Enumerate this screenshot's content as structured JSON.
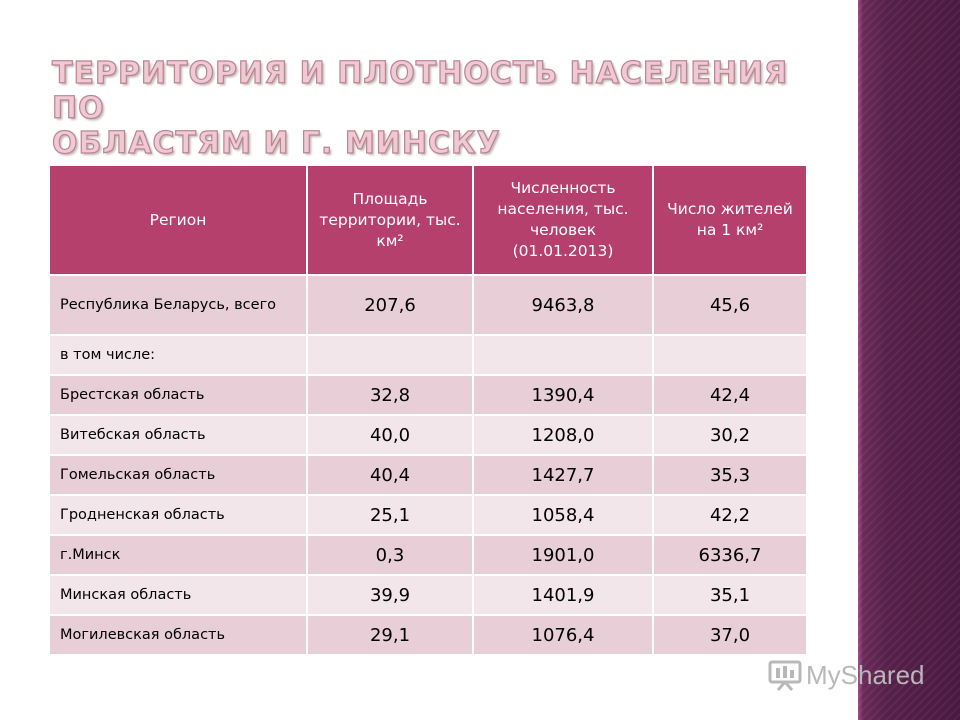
{
  "slide": {
    "title_line1": "ТЕРРИТОРИЯ И ПЛОТНОСТЬ НАСЕЛЕНИЯ ПО",
    "title_line2": "ОБЛАСТЯМ И Г. МИНСКУ"
  },
  "table": {
    "headers": [
      "Регион",
      "Площадь территории, тыс. км²",
      "Численность населения, тыс. человек (01.01.2013)",
      "Число жителей на 1 км²"
    ],
    "rows": [
      {
        "region": "Республика Беларусь, всего",
        "area": "207,6",
        "population": "9463,8",
        "density": "45,6"
      },
      {
        "region": "в том числе:",
        "area": "",
        "population": "",
        "density": ""
      },
      {
        "region": "Брестская область",
        "area": "32,8",
        "population": "1390,4",
        "density": "42,4"
      },
      {
        "region": "Витебская область",
        "area": "40,0",
        "population": "1208,0",
        "density": "30,2"
      },
      {
        "region": "Гомельская область",
        "area": "40,4",
        "population": "1427,7",
        "density": "35,3"
      },
      {
        "region": "Гродненская область",
        "area": "25,1",
        "population": "1058,4",
        "density": "42,2"
      },
      {
        "region": "г.Минск",
        "area": "0,3",
        "population": "1901,0",
        "density": "6336,7"
      },
      {
        "region": "Минская область",
        "area": "39,9",
        "population": "1401,9",
        "density": "35,1"
      },
      {
        "region": "Могилевская область",
        "area": "29,1",
        "population": "1076,4",
        "density": "37,0"
      }
    ]
  },
  "watermark": {
    "text": "MyShared",
    "icon": "presentation-board-icon"
  },
  "colors": {
    "header_bg": "#b5406b",
    "row_dark": "#e8ced6",
    "row_light": "#f3e6ea",
    "side_band": "#4e1a44",
    "title": "#f0c9d6"
  }
}
